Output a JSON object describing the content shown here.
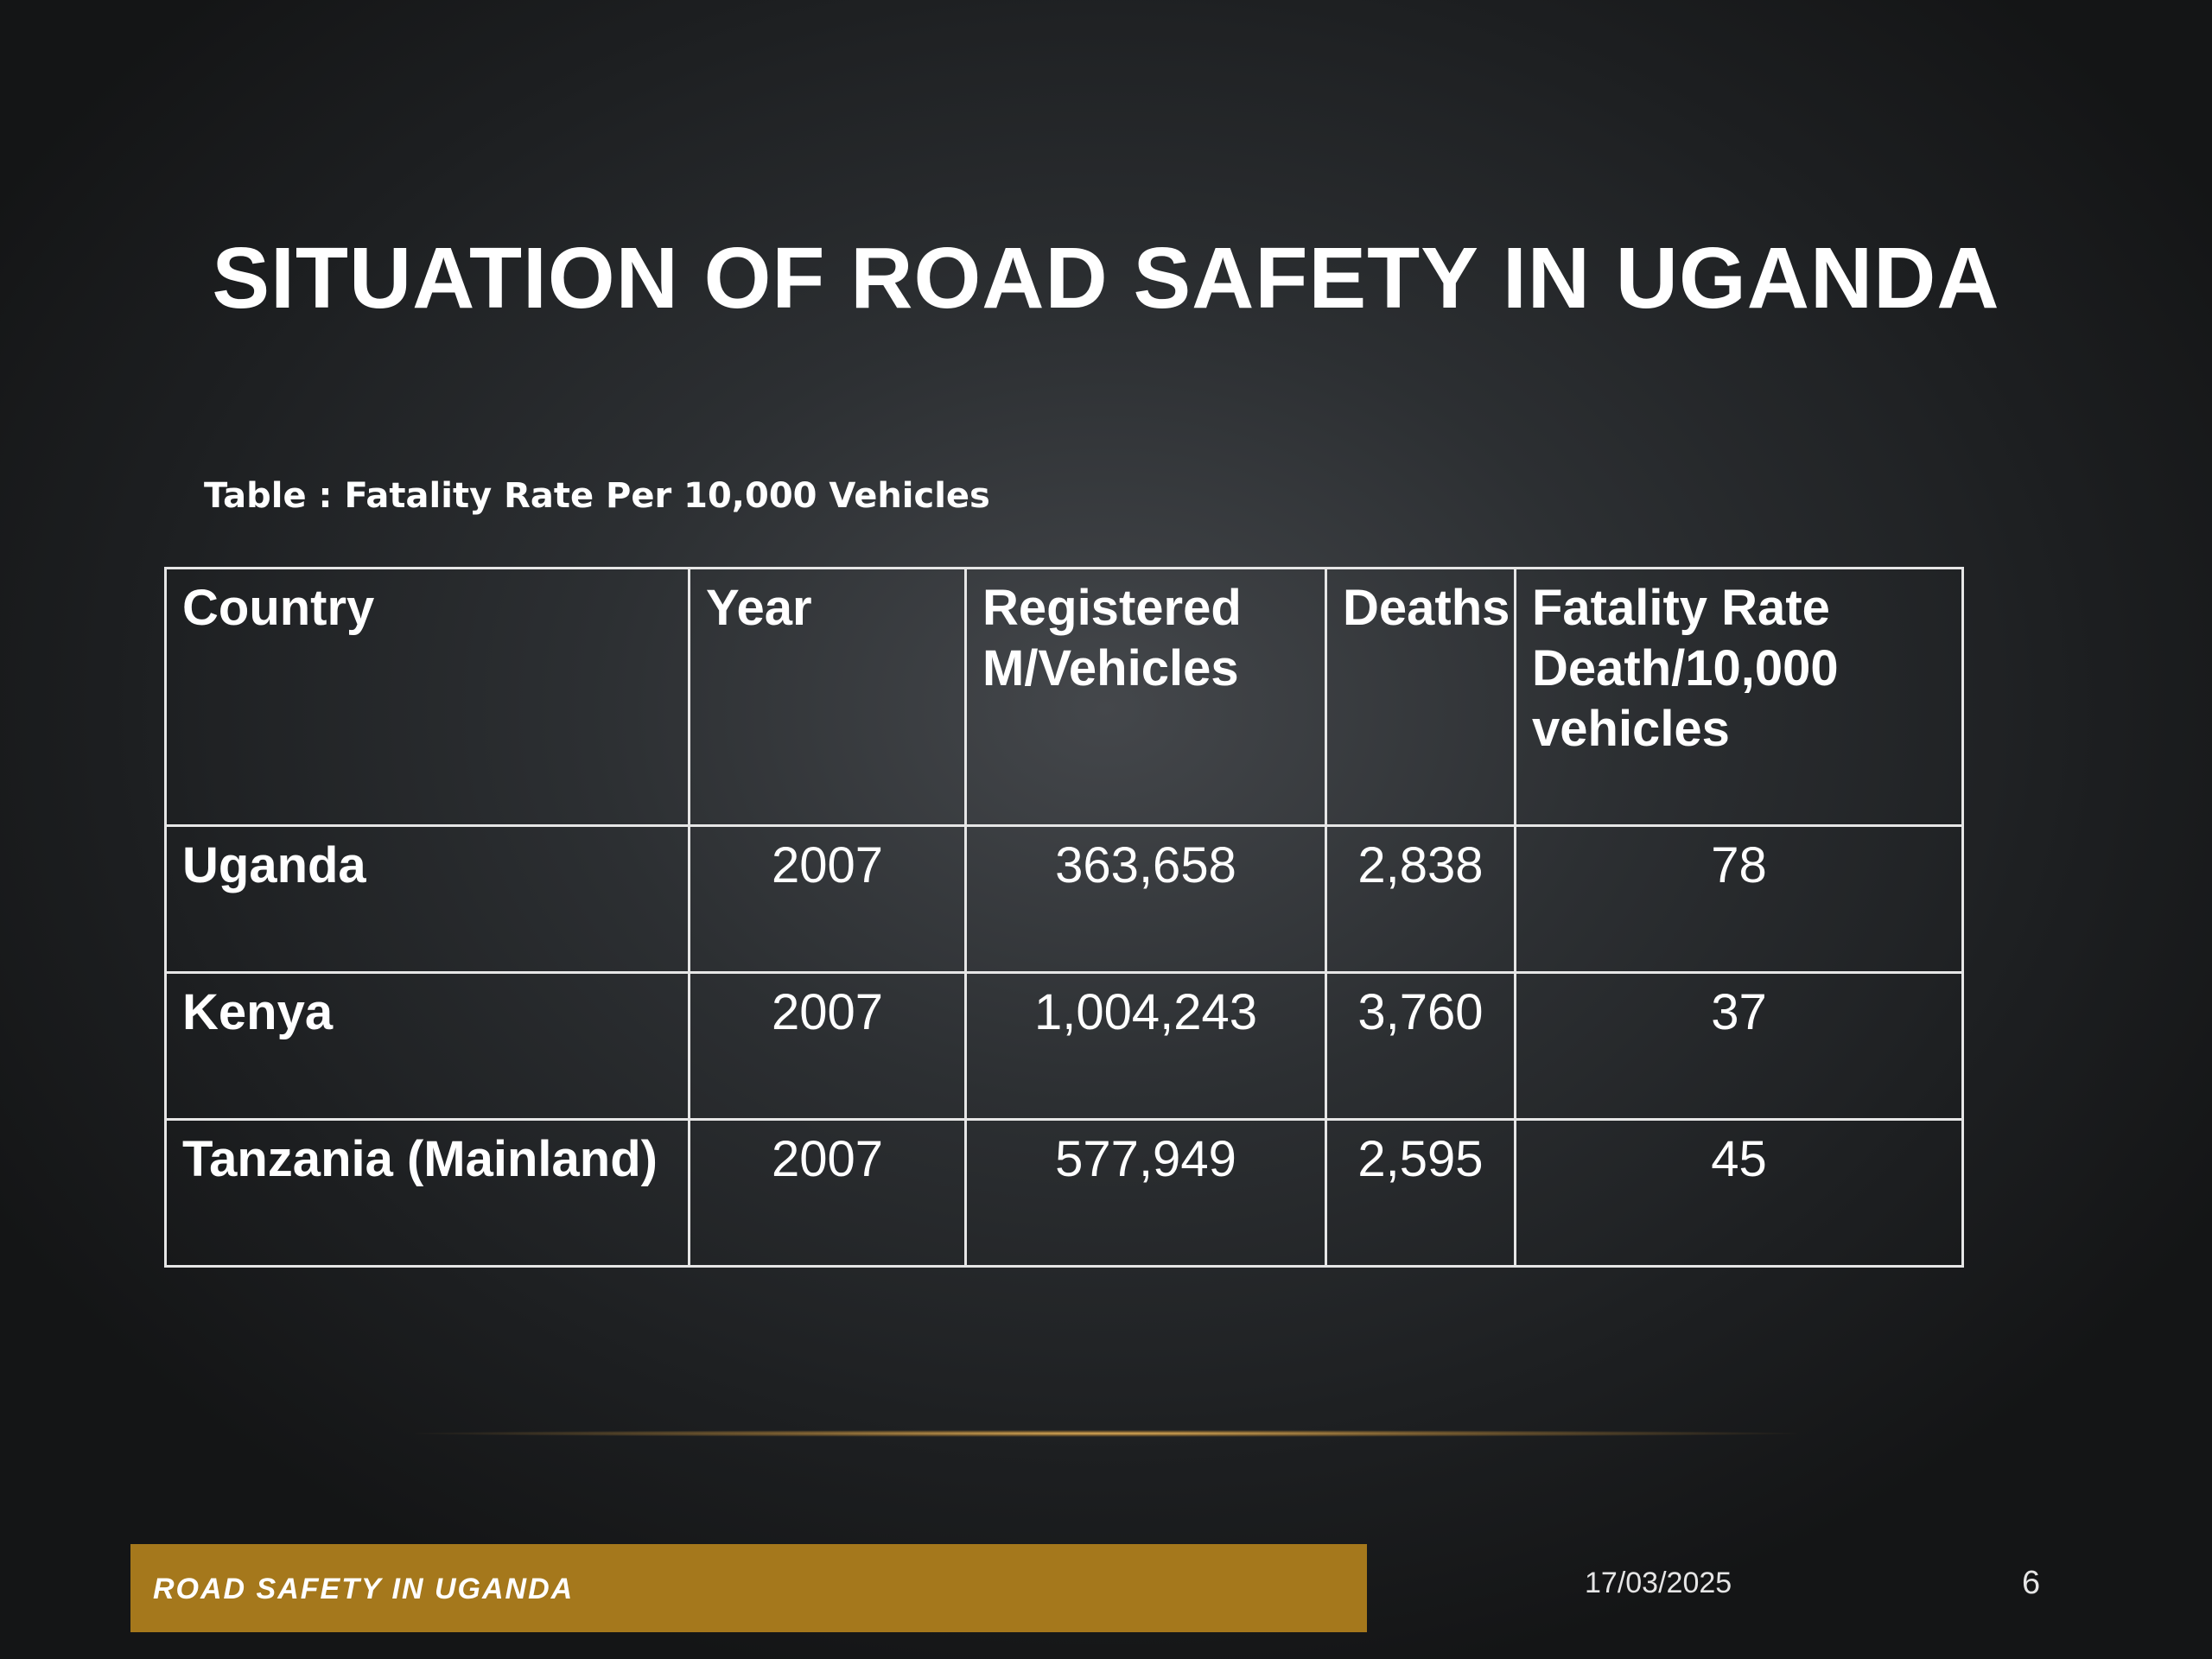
{
  "slide": {
    "title": "SITUATION OF ROAD SAFETY IN UGANDA",
    "table_caption": "Table : Fatality Rate Per 10,000 Vehicles"
  },
  "table": {
    "headers": [
      "Country",
      "Year",
      "Registered M/Vehicles",
      "Deaths",
      "Fatality Rate Death/10,000 vehicles"
    ],
    "rows": [
      {
        "country": "Uganda",
        "year": "2007",
        "registered": "363,658",
        "deaths": "2,838",
        "rate": "78"
      },
      {
        "country": "Kenya",
        "year": "2007",
        "registered": "1,004,243",
        "deaths": "3,760",
        "rate": "37"
      },
      {
        "country": "Tanzania (Mainland)",
        "year": "2007",
        "registered": "577,949",
        "deaths": "2,595",
        "rate": "45"
      }
    ]
  },
  "footer": {
    "label": "ROAD SAFETY IN UGANDA",
    "date": "17/03/2025",
    "page_number": "6"
  },
  "colors": {
    "accent_gold": "#a5781c",
    "background_dark": "#1d1f21",
    "text": "#ffffff",
    "table_border": "#e6e6e6"
  }
}
